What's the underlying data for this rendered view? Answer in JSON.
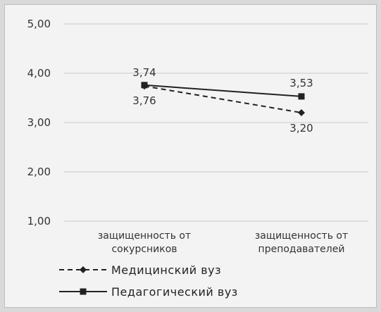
{
  "chart_data": {
    "type": "line",
    "categories": [
      [
        "защищенность от",
        "сокурсников"
      ],
      [
        "защищенность от",
        "преподавателей"
      ]
    ],
    "series": [
      {
        "name": "Медицинский вуз",
        "values": [
          3.74,
          3.2
        ],
        "labels": [
          "3,74",
          "3,20"
        ],
        "style": "dashed",
        "marker": "diamond"
      },
      {
        "name": "Педагогический вуз",
        "values": [
          3.76,
          3.53
        ],
        "labels": [
          "3,76",
          "3,53"
        ],
        "style": "solid",
        "marker": "square"
      }
    ],
    "ylim": [
      1.0,
      5.0
    ],
    "yticks": [
      1.0,
      2.0,
      3.0,
      4.0,
      5.0
    ],
    "ytick_labels": [
      "1,00",
      "2,00",
      "3,00",
      "4,00",
      "5,00"
    ],
    "grid": true,
    "legend_position": "bottom-left",
    "colors": {
      "line": "#222222",
      "grid": "#c8c8c8",
      "background": "#f3f3f3"
    }
  }
}
